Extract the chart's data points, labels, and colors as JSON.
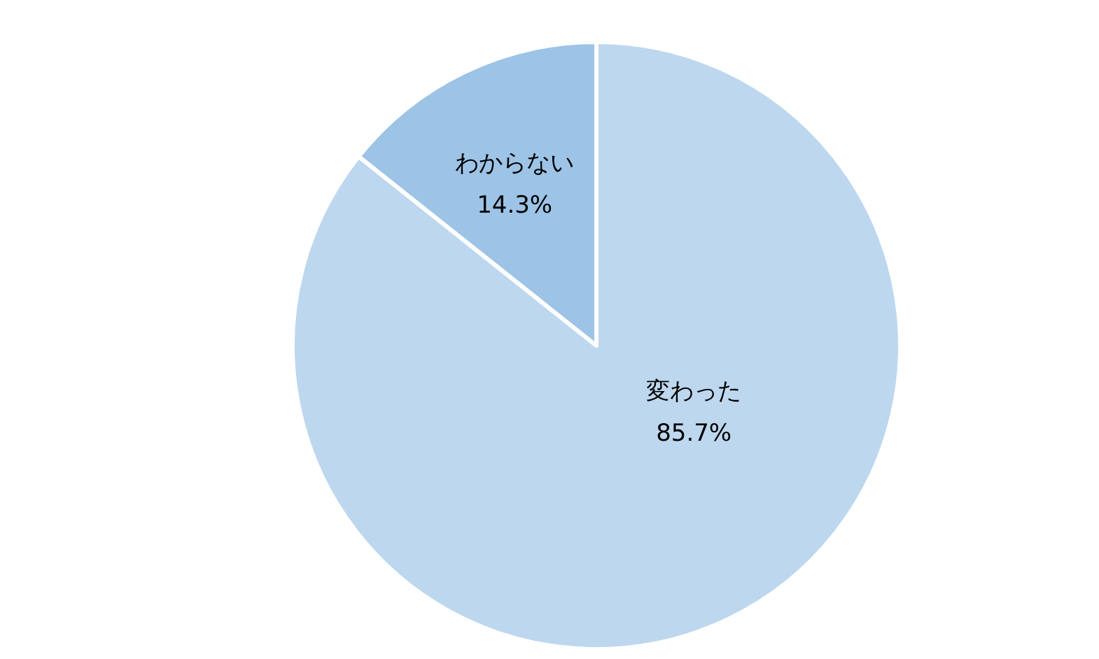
{
  "chart_data": {
    "type": "pie",
    "categories": [
      "変わった",
      "わからない"
    ],
    "values": [
      85.7,
      14.3
    ],
    "value_labels": [
      "85.7%",
      "14.3%"
    ],
    "colors": [
      "#bdd7ee",
      "#9dc3e6"
    ]
  }
}
